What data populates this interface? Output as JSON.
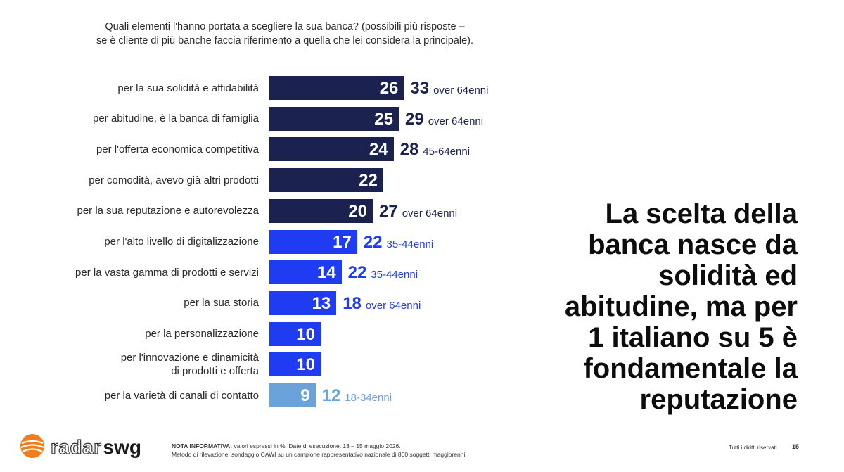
{
  "question": {
    "line1": "Quali elementi l'hanno portata a scegliere la sua banca? (possibili più risposte –",
    "line2": "se è cliente di più banche faccia riferimento a quella che lei considera la principale)."
  },
  "chart_data": {
    "type": "bar",
    "orientation": "horizontal",
    "unit": "%",
    "categories": [
      "per la sua solidità e affidabilità",
      "per abitudine, è la banca di famiglia",
      "per l'offerta economica competitiva",
      "per comodità, avevo già altri prodotti",
      "per la sua reputazione e autorevolezza",
      "per l'alto livello di digitalizzazione",
      "per la vasta gamma di prodotti e servizi",
      "per la sua storia",
      "per la personalizzazione",
      "per l'innovazione e dinamicità\ndi prodotti e offerta",
      "per la varietà di canali di contatto"
    ],
    "values": [
      26,
      25,
      24,
      22,
      20,
      17,
      14,
      13,
      10,
      10,
      9
    ],
    "subgroup_values": [
      33,
      29,
      28,
      null,
      27,
      22,
      22,
      18,
      null,
      null,
      12
    ],
    "subgroup_labels": [
      "over 64enni",
      "over 64enni",
      "45-64enni",
      "",
      "over 64enni",
      "35-44enni",
      "35-44enni",
      "over 64enni",
      "",
      "",
      "18-34enni"
    ],
    "bar_colors": [
      "#1b2250",
      "#1b2250",
      "#1b2250",
      "#1b2250",
      "#1b2250",
      "#1f3cf2",
      "#1f3cf2",
      "#1f3cf2",
      "#1f3cf2",
      "#1f3cf2",
      "#6aa3dc"
    ],
    "subgroup_text_colors": [
      "#1b2250",
      "#1b2250",
      "#1b2250",
      "#1b2250",
      "#1b2250",
      "#1f3cf2",
      "#1f3cf2",
      "#1f3cf2",
      "#1f3cf2",
      "#1f3cf2",
      "#6aa3dc"
    ],
    "xlim": [
      0,
      26
    ]
  },
  "headline": [
    "La scelta della",
    "banca nasce da",
    "solidità ed",
    "abitudine, ma per",
    "1 italiano su 5 è",
    "fondamentale la",
    "reputazione"
  ],
  "footer": {
    "logo_radar": "radar",
    "logo_swg": "swg",
    "note_title": "NOTA INFORMATIVA:",
    "note_line1": " valori espressi in %. Date di esecuzione: 13 – 15 maggio 2026.",
    "note_line2": "Metodo di rilevazione: sondaggio CAWI su un campione rappresentativo nazionale di 800 soggetti maggiorenni.",
    "rights": "Tutti i diritti riservati",
    "page": "15"
  },
  "colors": {
    "logo_orange": "#f07d1e"
  }
}
